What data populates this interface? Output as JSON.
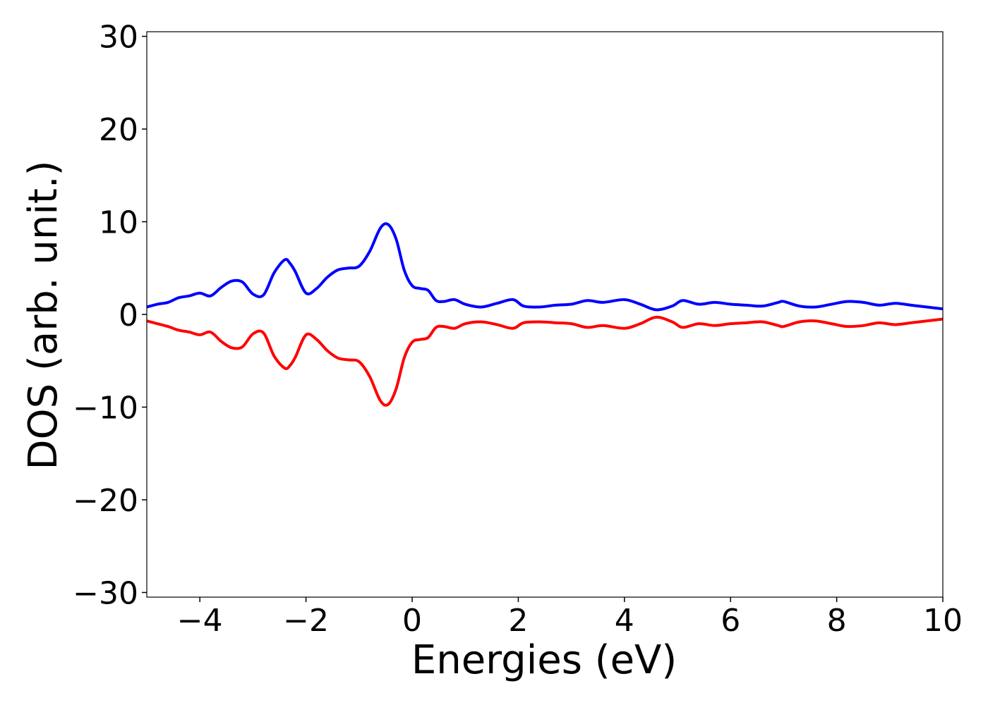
{
  "chart_data": {
    "type": "line",
    "xlabel": "Energies (eV)",
    "ylabel": "DOS (arb. unit.)",
    "xlim": [
      -5,
      10
    ],
    "ylim": [
      -30.5,
      30.5
    ],
    "xticks": [
      -4,
      -2,
      0,
      2,
      4,
      6,
      8,
      10
    ],
    "xtick_labels": [
      "−4",
      "−2",
      "0",
      "2",
      "4",
      "6",
      "8",
      "10"
    ],
    "yticks": [
      30,
      20,
      10,
      0,
      -10,
      -20,
      -30
    ],
    "ytick_labels": [
      "30",
      "20",
      "10",
      "0",
      "−10",
      "−20",
      "−30"
    ],
    "grid": false,
    "legend": "none",
    "series": [
      {
        "color": "#0000ff",
        "x": [
          -5.0,
          -4.8,
          -4.6,
          -4.4,
          -4.2,
          -4.0,
          -3.8,
          -3.6,
          -3.4,
          -3.2,
          -3.0,
          -2.8,
          -2.6,
          -2.4,
          -2.3,
          -2.2,
          -2.0,
          -1.8,
          -1.6,
          -1.4,
          -1.2,
          -1.0,
          -0.8,
          -0.6,
          -0.45,
          -0.3,
          -0.15,
          0.0,
          0.15,
          0.3,
          0.45,
          0.6,
          0.8,
          1.0,
          1.3,
          1.6,
          1.9,
          2.1,
          2.4,
          2.7,
          3.0,
          3.3,
          3.6,
          4.0,
          4.3,
          4.6,
          4.9,
          5.1,
          5.4,
          5.7,
          6.0,
          6.3,
          6.6,
          6.9,
          7.0,
          7.3,
          7.6,
          7.9,
          8.2,
          8.5,
          8.8,
          9.1,
          9.4,
          9.7,
          10.0
        ],
        "values": [
          0.8,
          1.1,
          1.3,
          1.8,
          2.0,
          2.3,
          2.0,
          2.9,
          3.6,
          3.5,
          2.2,
          2.1,
          4.5,
          5.9,
          5.5,
          4.6,
          2.3,
          2.8,
          4.0,
          4.8,
          5.0,
          5.2,
          6.8,
          9.3,
          9.7,
          8.1,
          4.8,
          3.1,
          2.8,
          2.6,
          1.5,
          1.4,
          1.6,
          1.1,
          0.8,
          1.2,
          1.6,
          0.9,
          0.8,
          1.0,
          1.1,
          1.5,
          1.3,
          1.6,
          1.1,
          0.5,
          0.9,
          1.5,
          1.1,
          1.3,
          1.1,
          1.0,
          0.9,
          1.3,
          1.4,
          0.9,
          0.8,
          1.1,
          1.4,
          1.3,
          1.0,
          1.2,
          1.0,
          0.8,
          0.6
        ]
      },
      {
        "color": "#ff0000",
        "x": [
          -5.0,
          -4.8,
          -4.6,
          -4.4,
          -4.2,
          -4.0,
          -3.8,
          -3.6,
          -3.4,
          -3.2,
          -3.0,
          -2.8,
          -2.6,
          -2.4,
          -2.3,
          -2.2,
          -2.0,
          -1.8,
          -1.6,
          -1.4,
          -1.2,
          -1.0,
          -0.8,
          -0.6,
          -0.45,
          -0.3,
          -0.15,
          0.0,
          0.15,
          0.3,
          0.45,
          0.6,
          0.8,
          1.0,
          1.3,
          1.6,
          1.9,
          2.1,
          2.4,
          2.7,
          3.0,
          3.3,
          3.6,
          4.0,
          4.3,
          4.6,
          4.9,
          5.1,
          5.4,
          5.7,
          6.0,
          6.3,
          6.6,
          6.9,
          7.0,
          7.3,
          7.6,
          7.9,
          8.2,
          8.5,
          8.8,
          9.1,
          9.4,
          9.7,
          10.0
        ],
        "values": [
          -0.7,
          -1.0,
          -1.3,
          -1.7,
          -1.9,
          -2.2,
          -1.9,
          -2.9,
          -3.6,
          -3.5,
          -2.1,
          -2.0,
          -4.5,
          -5.8,
          -5.5,
          -4.6,
          -2.2,
          -2.7,
          -3.9,
          -4.7,
          -4.9,
          -5.1,
          -6.7,
          -9.3,
          -9.7,
          -8.0,
          -4.7,
          -3.0,
          -2.7,
          -2.5,
          -1.4,
          -1.3,
          -1.5,
          -1.0,
          -0.8,
          -1.1,
          -1.5,
          -0.9,
          -0.8,
          -0.9,
          -1.0,
          -1.4,
          -1.2,
          -1.5,
          -1.0,
          -0.3,
          -0.8,
          -1.4,
          -1.0,
          -1.2,
          -1.0,
          -0.9,
          -0.8,
          -1.2,
          -1.3,
          -0.8,
          -0.7,
          -1.0,
          -1.3,
          -1.2,
          -0.9,
          -1.1,
          -0.9,
          -0.7,
          -0.5
        ]
      }
    ]
  }
}
